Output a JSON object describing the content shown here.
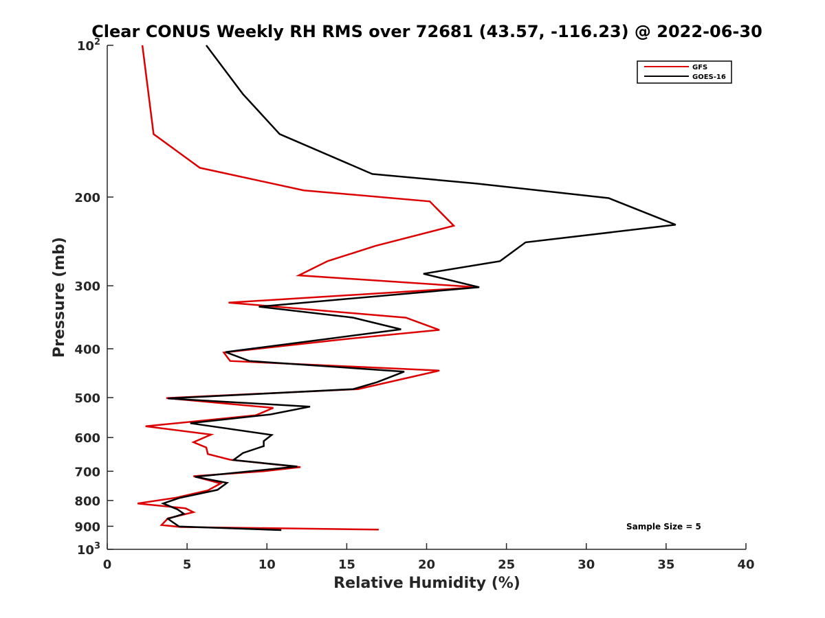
{
  "chart_data": {
    "type": "line",
    "title": "Clear CONUS Weekly RH RMS over 72681 (43.57, -116.23) @ 2022-06-30",
    "xlabel": "Relative Humidity (%)",
    "ylabel": "Pressure (mb)",
    "xlim": [
      0,
      40
    ],
    "ylim": [
      100,
      1000
    ],
    "y_scale": "log",
    "y_reversed": true,
    "grid": false,
    "legend_position": "top-right",
    "x_ticks": [
      "0",
      "5",
      "10",
      "15",
      "20",
      "25",
      "30",
      "35",
      "40"
    ],
    "y_ticks": [
      {
        "value": 100,
        "base": "10",
        "exp": "2"
      },
      {
        "value": 200,
        "text": "200"
      },
      {
        "value": 300,
        "text": "300"
      },
      {
        "value": 400,
        "text": "400"
      },
      {
        "value": 500,
        "text": "500"
      },
      {
        "value": 600,
        "text": "600"
      },
      {
        "value": 700,
        "text": "700"
      },
      {
        "value": 800,
        "text": "800"
      },
      {
        "value": 900,
        "text": "900"
      },
      {
        "value": 1000,
        "base": "10",
        "exp": "3"
      }
    ],
    "annotation": "Sample Size = 5",
    "series": [
      {
        "name": "GFS",
        "color": "#dd0000",
        "points": [
          [
            2.2,
            100
          ],
          [
            2.9,
            150
          ],
          [
            5.8,
            175
          ],
          [
            12.3,
            194
          ],
          [
            20.2,
            204
          ],
          [
            21.7,
            228
          ],
          [
            16.8,
            250
          ],
          [
            13.8,
            268
          ],
          [
            12.0,
            286
          ],
          [
            23.2,
            302
          ],
          [
            7.6,
            324
          ],
          [
            18.7,
            347
          ],
          [
            20.8,
            367
          ],
          [
            14.8,
            383
          ],
          [
            7.3,
            407
          ],
          [
            7.7,
            423
          ],
          [
            20.8,
            442
          ],
          [
            15.7,
            481
          ],
          [
            3.7,
            501
          ],
          [
            10.4,
            524
          ],
          [
            9.3,
            542
          ],
          [
            2.4,
            570
          ],
          [
            6.5,
            592
          ],
          [
            5.4,
            613
          ],
          [
            6.2,
            628
          ],
          [
            6.3,
            647
          ],
          [
            7.7,
            664
          ],
          [
            12.1,
            687
          ],
          [
            9.8,
            700
          ],
          [
            5.4,
            716
          ],
          [
            7.1,
            740
          ],
          [
            6.3,
            764
          ],
          [
            4.3,
            790
          ],
          [
            1.9,
            811
          ],
          [
            4.9,
            829
          ],
          [
            5.4,
            844
          ],
          [
            3.8,
            868
          ],
          [
            3.4,
            895
          ],
          [
            4.6,
            903
          ],
          [
            17.0,
            914
          ]
        ]
      },
      {
        "name": "GOES-16",
        "color": "#000000",
        "points": [
          [
            6.2,
            100
          ],
          [
            8.5,
            125
          ],
          [
            10.8,
            150
          ],
          [
            16.6,
            180
          ],
          [
            23.1,
            188
          ],
          [
            31.4,
            201
          ],
          [
            35.6,
            227
          ],
          [
            26.2,
            246
          ],
          [
            24.6,
            268
          ],
          [
            19.8,
            284
          ],
          [
            23.3,
            302
          ],
          [
            9.5,
            330
          ],
          [
            15.4,
            347
          ],
          [
            18.4,
            366
          ],
          [
            13.9,
            382
          ],
          [
            7.4,
            406
          ],
          [
            8.9,
            423
          ],
          [
            18.6,
            444
          ],
          [
            16.9,
            466
          ],
          [
            15.4,
            481
          ],
          [
            3.8,
            502
          ],
          [
            12.7,
            521
          ],
          [
            10.2,
            540
          ],
          [
            5.2,
            562
          ],
          [
            10.3,
            593
          ],
          [
            9.8,
            610
          ],
          [
            9.8,
            624
          ],
          [
            8.5,
            644
          ],
          [
            7.9,
            665
          ],
          [
            11.9,
            685
          ],
          [
            5.5,
            718
          ],
          [
            7.5,
            738
          ],
          [
            6.9,
            762
          ],
          [
            4.5,
            791
          ],
          [
            3.5,
            811
          ],
          [
            4.4,
            833
          ],
          [
            4.8,
            850
          ],
          [
            3.8,
            870
          ],
          [
            4.5,
            901
          ],
          [
            10.9,
            916
          ]
        ]
      }
    ]
  }
}
